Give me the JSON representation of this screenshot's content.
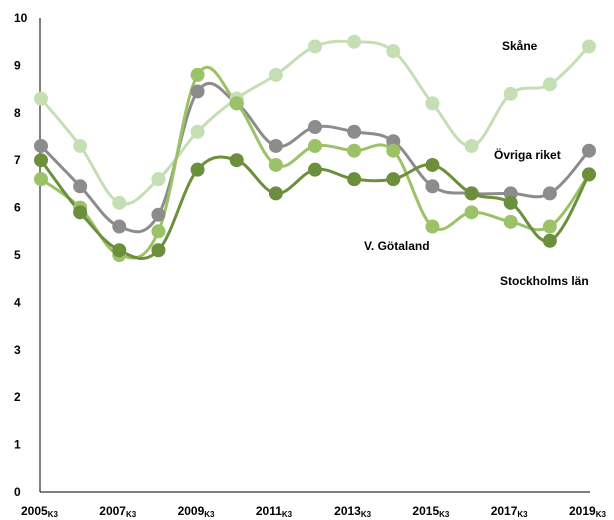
{
  "chart_data": {
    "type": "line",
    "title": "",
    "xlabel": "",
    "ylabel": "",
    "ylim": [
      0,
      10
    ],
    "yticks": [
      0,
      1,
      2,
      3,
      4,
      5,
      6,
      7,
      8,
      9,
      10
    ],
    "x": [
      2005,
      2006,
      2007,
      2008,
      2009,
      2010,
      2011,
      2012,
      2013,
      2014,
      2015,
      2016,
      2017,
      2018,
      2019
    ],
    "xtick_labels": [
      {
        "year": "2005",
        "sub": "K3"
      },
      {
        "year": "2007",
        "sub": "K3"
      },
      {
        "year": "2009",
        "sub": "K3"
      },
      {
        "year": "2011",
        "sub": "K3"
      },
      {
        "year": "2013",
        "sub": "K3"
      },
      {
        "year": "2015",
        "sub": "K3"
      },
      {
        "year": "2017",
        "sub": "K3"
      },
      {
        "year": "2019",
        "sub": "K3"
      }
    ],
    "grid": false,
    "legend": "inline labels",
    "series": [
      {
        "name": "Skåne",
        "color": "#c5dfb5",
        "values": [
          8.3,
          7.3,
          6.1,
          6.6,
          7.6,
          8.3,
          8.8,
          9.4,
          9.5,
          9.3,
          8.2,
          7.3,
          8.4,
          8.6,
          9.4
        ]
      },
      {
        "name": "Övriga riket",
        "color": "#8c8c8c",
        "values": [
          7.3,
          6.45,
          5.6,
          5.85,
          8.45,
          8.2,
          7.3,
          7.7,
          7.6,
          7.4,
          6.45,
          6.3,
          6.3,
          6.3,
          7.2
        ]
      },
      {
        "name": "V. Götaland",
        "color": "#9bc266",
        "values": [
          6.6,
          6.0,
          5.0,
          5.5,
          8.8,
          8.2,
          6.9,
          7.3,
          7.2,
          7.2,
          5.6,
          5.9,
          5.7,
          5.6,
          6.7
        ]
      },
      {
        "name": "Stockholms län",
        "color": "#6b8f3c",
        "values": [
          7.0,
          5.9,
          5.1,
          5.1,
          6.8,
          7.0,
          6.3,
          6.8,
          6.6,
          6.6,
          6.9,
          6.3,
          6.1,
          5.3,
          6.7
        ]
      }
    ]
  }
}
